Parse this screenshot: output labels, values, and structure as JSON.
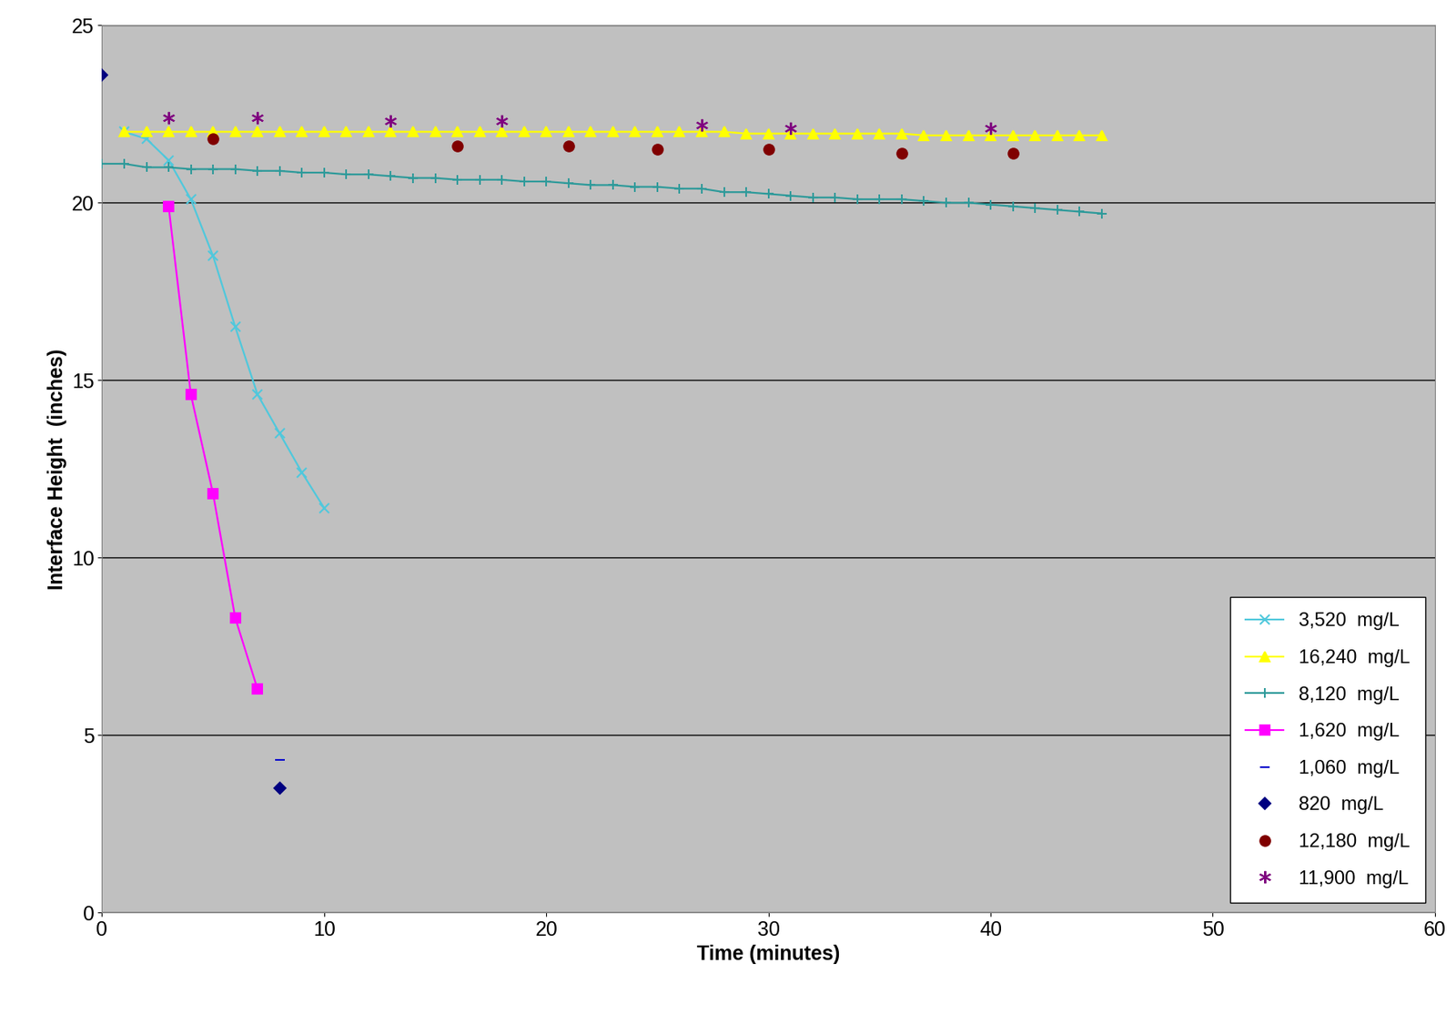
{
  "chart_data": {
    "type": "line",
    "x_label": "Time (minutes)",
    "y_label": "Interface Height  (inches)",
    "xlim": [
      0,
      60
    ],
    "xticks": [
      0,
      10,
      20,
      30,
      40,
      50,
      60
    ],
    "ylim": [
      0,
      25
    ],
    "yticks": [
      0,
      5,
      10,
      15,
      20,
      25
    ],
    "grid": "y",
    "legend": "lower right",
    "series": [
      {
        "name": "3,520  mg/L",
        "type": "line",
        "color": "#4FC8DC",
        "marker": "x",
        "x": [
          1,
          2,
          3,
          4,
          5,
          6,
          7,
          8,
          9,
          10
        ],
        "values": [
          22.0,
          21.8,
          21.2,
          20.1,
          18.5,
          16.5,
          14.6,
          13.5,
          12.4,
          11.4
        ]
      },
      {
        "name": "16,240  mg/L",
        "type": "line",
        "color": "#FFFF00",
        "marker": "triangle",
        "x": [
          1,
          2,
          3,
          4,
          5,
          6,
          7,
          8,
          9,
          10,
          11,
          12,
          13,
          14,
          15,
          16,
          17,
          18,
          19,
          20,
          21,
          22,
          23,
          24,
          25,
          26,
          27,
          28,
          29,
          30,
          31,
          32,
          33,
          34,
          35,
          36,
          37,
          38,
          39,
          40,
          41,
          42,
          43,
          44,
          45
        ],
        "values": [
          22.0,
          22.0,
          22.0,
          22.0,
          22.0,
          22.0,
          22.0,
          22.0,
          22.0,
          22.0,
          22.0,
          22.0,
          22.0,
          22.0,
          22.0,
          22.0,
          22.0,
          22.0,
          22.0,
          22.0,
          22.0,
          22.0,
          22.0,
          22.0,
          22.0,
          22.0,
          22.0,
          22.0,
          21.95,
          21.95,
          21.95,
          21.95,
          21.95,
          21.95,
          21.95,
          21.95,
          21.9,
          21.9,
          21.9,
          21.9,
          21.9,
          21.9,
          21.9,
          21.9,
          21.9
        ]
      },
      {
        "name": "8,120  mg/L",
        "type": "line",
        "color": "#2E9A9A",
        "marker": "plus",
        "x": [
          0,
          1,
          2,
          3,
          4,
          5,
          6,
          7,
          8,
          9,
          10,
          11,
          12,
          13,
          14,
          15,
          16,
          17,
          18,
          19,
          20,
          21,
          22,
          23,
          24,
          25,
          26,
          27,
          28,
          29,
          30,
          31,
          32,
          33,
          34,
          35,
          36,
          37,
          38,
          39,
          40,
          41,
          42,
          43,
          44,
          45
        ],
        "values": [
          21.1,
          21.1,
          21.0,
          21.0,
          20.95,
          20.95,
          20.95,
          20.9,
          20.9,
          20.85,
          20.85,
          20.8,
          20.8,
          20.75,
          20.7,
          20.7,
          20.65,
          20.65,
          20.65,
          20.6,
          20.6,
          20.55,
          20.5,
          20.5,
          20.45,
          20.45,
          20.4,
          20.4,
          20.3,
          20.3,
          20.25,
          20.2,
          20.15,
          20.15,
          20.1,
          20.1,
          20.1,
          20.05,
          20.0,
          20.0,
          19.95,
          19.9,
          19.85,
          19.8,
          19.75,
          19.7
        ]
      },
      {
        "name": "1,620  mg/L",
        "type": "line",
        "color": "#FF00FF",
        "marker": "square",
        "x": [
          3,
          4,
          5,
          6,
          7
        ],
        "values": [
          19.9,
          14.6,
          11.8,
          8.3,
          6.3
        ]
      },
      {
        "name": "1,060  mg/L",
        "type": "scatter",
        "color": "#0000CC",
        "marker": "dash",
        "x": [
          8
        ],
        "values": [
          4.3
        ]
      },
      {
        "name": "820  mg/L",
        "type": "scatter",
        "color": "#000080",
        "marker": "diamond",
        "x": [
          0,
          8
        ],
        "values": [
          23.6,
          3.5
        ]
      },
      {
        "name": "12,180  mg/L",
        "type": "scatter",
        "color": "#800000",
        "marker": "circle",
        "x": [
          5,
          16,
          21,
          25,
          30,
          36,
          41
        ],
        "values": [
          21.8,
          21.6,
          21.6,
          21.5,
          21.5,
          21.4,
          21.4
        ]
      },
      {
        "name": "11,900  mg/L",
        "type": "scatter",
        "color": "#800080",
        "marker": "asterisk",
        "x": [
          3,
          7,
          13,
          18,
          27,
          31,
          40
        ],
        "values": [
          22.4,
          22.4,
          22.3,
          22.3,
          22.2,
          22.1,
          22.1
        ]
      }
    ]
  }
}
